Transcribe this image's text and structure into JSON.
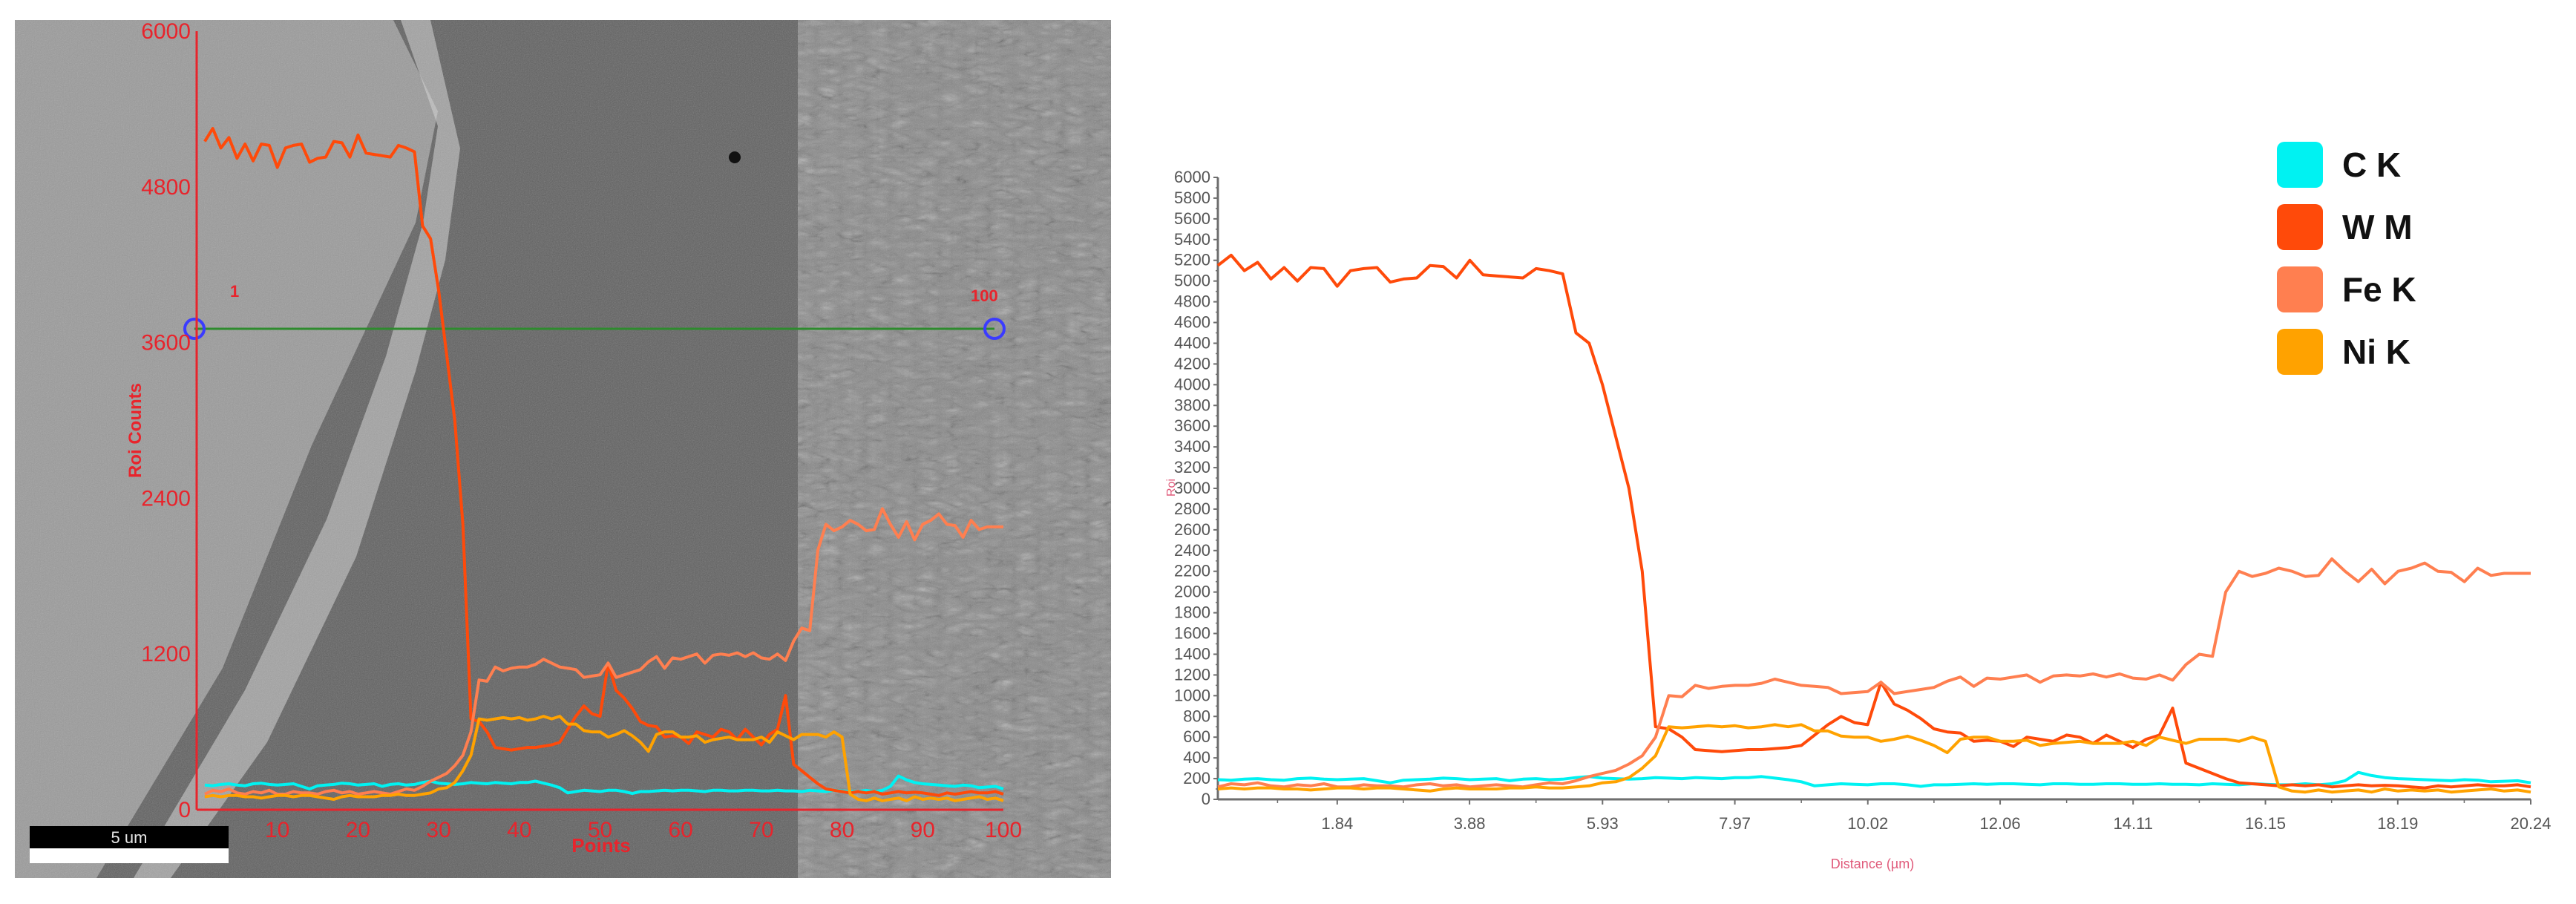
{
  "left_panel": {
    "type": "sem_image_with_linescan_overlay",
    "y_axis_label": "Roi Counts",
    "x_axis_label": "Points",
    "y_ticks": [
      "0",
      "1200",
      "2400",
      "3600",
      "4800",
      "6000"
    ],
    "x_ticks": [
      "10",
      "20",
      "30",
      "40",
      "50",
      "60",
      "70",
      "80",
      "90",
      "100"
    ],
    "scan_start_label": "1",
    "scan_end_label": "100",
    "scale_bar_label": "5 um",
    "axis_color": "#e8242c",
    "scan_line_color": "#2e8b2e",
    "marker_color": "#3b3bff"
  },
  "right_panel": {
    "y_axis_label": "Roi",
    "x_axis_label": "Distance (µm)",
    "y_ticks": [
      "0",
      "200",
      "400",
      "600",
      "800",
      "1000",
      "1200",
      "1400",
      "1600",
      "1800",
      "2000",
      "2200",
      "2400",
      "2600",
      "2800",
      "3000",
      "3200",
      "3400",
      "3600",
      "3800",
      "4000",
      "4200",
      "4400",
      "4600",
      "4800",
      "5000",
      "5200",
      "5400",
      "5600",
      "5800",
      "6000"
    ],
    "x_ticks": [
      "1.84",
      "3.88",
      "5.93",
      "7.97",
      "10.02",
      "12.06",
      "14.11",
      "16.15",
      "18.19",
      "20.24"
    ]
  },
  "legend": [
    {
      "label": "C K",
      "color": "#00f2f2"
    },
    {
      "label": "W M",
      "color": "#ff4a0a"
    },
    {
      "label": "Fe K",
      "color": "#ff7f50"
    },
    {
      "label": "Ni K",
      "color": "#ffa200"
    }
  ],
  "chart_data": {
    "type": "line",
    "title": "EDS line scan (Roi counts vs distance)",
    "xlabel": "Distance (µm)",
    "ylabel": "Roi",
    "xlim": [
      0,
      20.24
    ],
    "ylim": [
      0,
      6000
    ],
    "x_points": 100,
    "x_tick_labels": [
      "1.84",
      "3.88",
      "5.93",
      "7.97",
      "10.02",
      "12.06",
      "14.11",
      "16.15",
      "18.19",
      "20.24"
    ],
    "legend_position": "upper right",
    "grid": false,
    "series": [
      {
        "name": "C K",
        "color": "#00f2f2",
        "values": [
          190,
          185,
          195,
          200,
          190,
          185,
          200,
          205,
          195,
          190,
          195,
          200,
          180,
          160,
          185,
          190,
          195,
          205,
          200,
          190,
          195,
          200,
          180,
          195,
          200,
          190,
          195,
          210,
          220,
          205,
          200,
          195,
          200,
          210,
          205,
          200,
          210,
          205,
          200,
          210,
          210,
          220,
          205,
          190,
          170,
          130,
          140,
          150,
          145,
          140,
          150,
          150,
          140,
          125,
          140,
          140,
          145,
          150,
          145,
          150,
          150,
          145,
          140,
          150,
          150,
          145,
          145,
          150,
          150,
          145,
          145,
          150,
          145,
          145,
          140,
          150,
          145,
          140,
          150,
          145,
          140,
          140,
          150,
          140,
          150,
          180,
          260,
          230,
          210,
          200,
          195,
          190,
          185,
          180,
          190,
          185,
          170,
          175,
          180,
          160
        ]
      },
      {
        "name": "W M",
        "color": "#ff4a0a",
        "values": [
          5150,
          5250,
          5100,
          5180,
          5020,
          5130,
          5000,
          5130,
          5120,
          4950,
          5100,
          5120,
          5130,
          4990,
          5020,
          5030,
          5150,
          5140,
          5030,
          5200,
          5060,
          5050,
          5040,
          5030,
          5120,
          5100,
          5070,
          4500,
          4400,
          4000,
          3500,
          3000,
          2200,
          700,
          680,
          600,
          480,
          470,
          460,
          470,
          480,
          480,
          490,
          500,
          520,
          620,
          720,
          800,
          740,
          720,
          1130,
          920,
          860,
          780,
          680,
          650,
          640,
          560,
          570,
          560,
          510,
          600,
          580,
          560,
          620,
          600,
          540,
          620,
          560,
          500,
          580,
          620,
          880,
          350,
          300,
          250,
          200,
          160,
          150,
          140,
          130,
          140,
          130,
          140,
          120,
          130,
          140,
          130,
          135,
          130,
          120,
          110,
          130,
          120,
          130,
          140,
          130,
          130,
          140,
          120
        ]
      },
      {
        "name": "Fe K",
        "color": "#ff7f50",
        "values": [
          120,
          150,
          140,
          160,
          130,
          120,
          140,
          130,
          150,
          120,
          120,
          140,
          130,
          130,
          120,
          140,
          150,
          130,
          140,
          120,
          130,
          140,
          130,
          120,
          140,
          160,
          150,
          180,
          220,
          250,
          280,
          340,
          420,
          600,
          1000,
          990,
          1100,
          1070,
          1090,
          1100,
          1100,
          1120,
          1160,
          1130,
          1100,
          1090,
          1080,
          1020,
          1030,
          1040,
          1130,
          1020,
          1040,
          1060,
          1080,
          1140,
          1180,
          1090,
          1170,
          1160,
          1180,
          1200,
          1130,
          1190,
          1200,
          1190,
          1210,
          1180,
          1210,
          1170,
          1160,
          1200,
          1150,
          1300,
          1400,
          1380,
          2000,
          2200,
          2150,
          2180,
          2230,
          2200,
          2150,
          2160,
          2320,
          2200,
          2100,
          2220,
          2080,
          2200,
          2230,
          2280,
          2200,
          2190,
          2100,
          2230,
          2160,
          2180,
          2180,
          2180
        ]
      },
      {
        "name": "Ni K",
        "color": "#ffa200",
        "values": [
          100,
          110,
          100,
          110,
          110,
          100,
          100,
          90,
          100,
          110,
          110,
          100,
          110,
          110,
          100,
          90,
          80,
          100,
          110,
          100,
          100,
          100,
          110,
          110,
          120,
          110,
          110,
          120,
          130,
          160,
          170,
          210,
          300,
          420,
          700,
          690,
          700,
          710,
          700,
          710,
          690,
          700,
          720,
          700,
          720,
          660,
          660,
          610,
          600,
          600,
          560,
          580,
          610,
          570,
          520,
          450,
          580,
          600,
          600,
          560,
          560,
          570,
          520,
          540,
          550,
          560,
          540,
          540,
          540,
          560,
          520,
          600,
          570,
          540,
          580,
          580,
          580,
          560,
          600,
          560,
          120,
          80,
          70,
          90,
          70,
          80,
          90,
          70,
          100,
          80,
          90,
          80,
          90,
          70,
          80,
          90,
          100,
          80,
          90,
          70
        ]
      }
    ]
  }
}
